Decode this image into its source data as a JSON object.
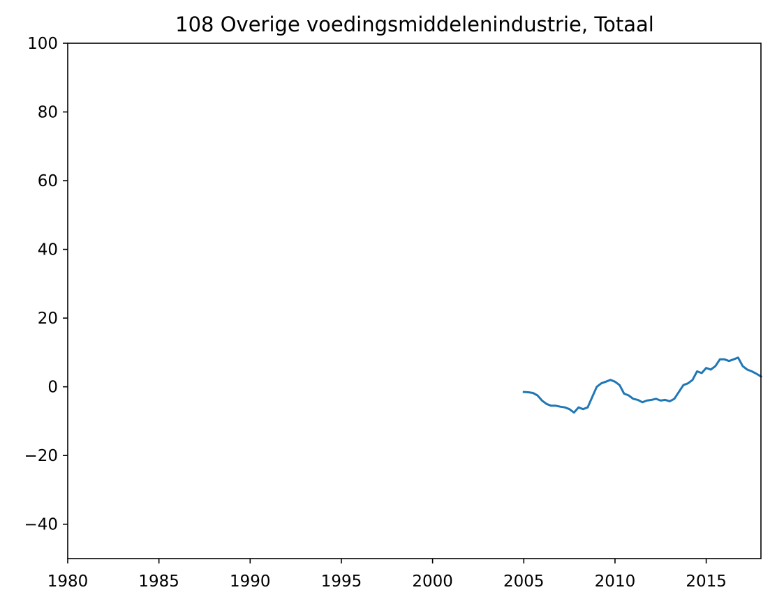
{
  "chart_data": {
    "type": "line",
    "title": "108 Overige voedingsmiddelenindustrie, Totaal",
    "xlabel": "",
    "ylabel": "",
    "xlim": [
      1980,
      2018
    ],
    "ylim": [
      -50,
      100
    ],
    "x_ticks": [
      1980,
      1985,
      1990,
      1995,
      2000,
      2005,
      2010,
      2015
    ],
    "x_tick_labels": [
      "1980",
      "1985",
      "1990",
      "1995",
      "2000",
      "2005",
      "2010",
      "2015"
    ],
    "y_ticks": [
      -40,
      -20,
      0,
      20,
      40,
      60,
      80,
      100
    ],
    "y_tick_labels": [
      "−40",
      "−20",
      "0",
      "20",
      "40",
      "60",
      "80",
      "100"
    ],
    "grid": false,
    "legend": "none",
    "series": [
      {
        "color": "#1f77b4",
        "x": [
          2005.0,
          2005.25,
          2005.5,
          2005.75,
          2006.0,
          2006.25,
          2006.5,
          2006.75,
          2007.0,
          2007.25,
          2007.5,
          2007.75,
          2008.0,
          2008.25,
          2008.5,
          2008.75,
          2009.0,
          2009.25,
          2009.5,
          2009.75,
          2010.0,
          2010.25,
          2010.5,
          2010.75,
          2011.0,
          2011.25,
          2011.5,
          2011.75,
          2012.0,
          2012.25,
          2012.5,
          2012.75,
          2013.0,
          2013.25,
          2013.5,
          2013.75,
          2014.0,
          2014.25,
          2014.5,
          2014.75,
          2015.0,
          2015.25,
          2015.5,
          2015.75,
          2016.0,
          2016.25,
          2016.5,
          2016.75,
          2017.0,
          2017.25,
          2017.5,
          2017.75,
          2018.0
        ],
        "y": [
          -1.5,
          -1.6,
          -1.8,
          -2.5,
          -4.0,
          -5.0,
          -5.5,
          -5.5,
          -5.8,
          -6.0,
          -6.5,
          -7.5,
          -6.0,
          -6.5,
          -6.0,
          -3.0,
          0.0,
          1.0,
          1.5,
          2.0,
          1.5,
          0.5,
          -2.0,
          -2.5,
          -3.5,
          -3.8,
          -4.5,
          -4.0,
          -3.8,
          -3.5,
          -4.0,
          -3.8,
          -4.2,
          -3.5,
          -1.5,
          0.5,
          1.0,
          2.0,
          4.5,
          4.0,
          5.5,
          5.0,
          6.0,
          8.0,
          8.0,
          7.5,
          8.0,
          8.5,
          6.0,
          5.0,
          4.5,
          3.8,
          3.0
        ]
      }
    ]
  }
}
